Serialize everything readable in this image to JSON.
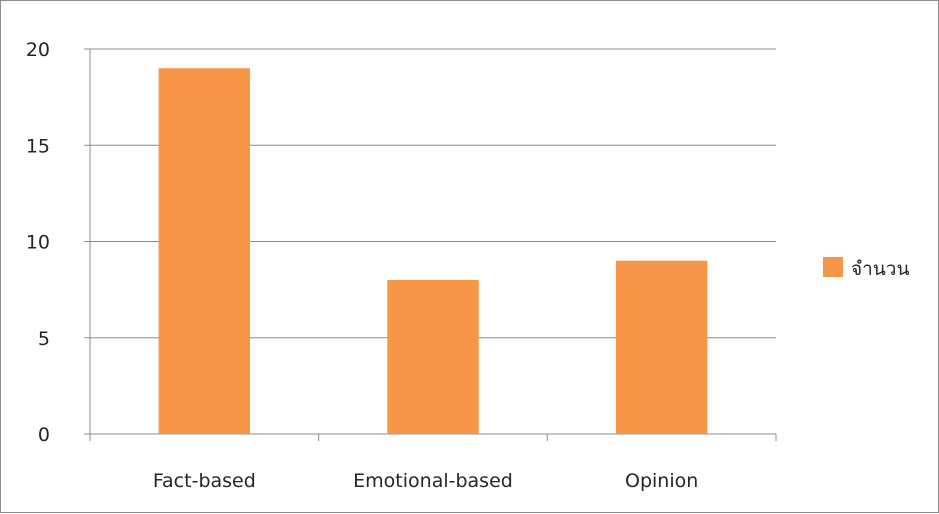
{
  "chart_data": {
    "type": "bar",
    "categories": [
      "Fact-based",
      "Emotional-based",
      "Opinion"
    ],
    "series": [
      {
        "name": "จำนวน",
        "values": [
          19,
          8,
          9
        ],
        "color": "#f79646"
      }
    ],
    "yticks": [
      "0",
      "5",
      "10",
      "15",
      "20"
    ],
    "ylim": [
      0,
      20
    ],
    "grid": true,
    "legend": "right"
  }
}
